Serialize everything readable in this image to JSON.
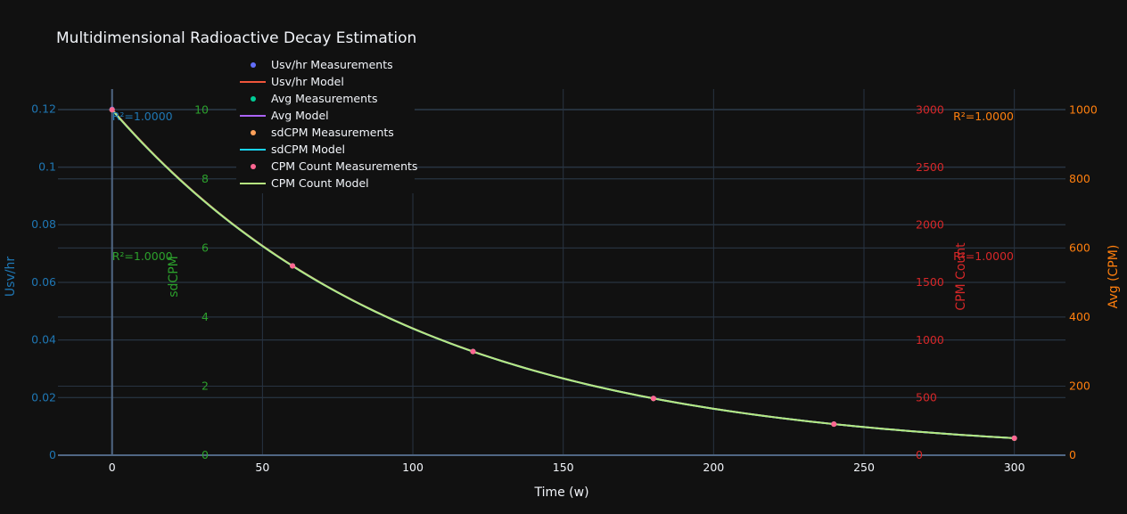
{
  "chart_data": {
    "type": "scatter",
    "title": "Multidimensional Radioactive Decay Estimation",
    "xlabel": "Time (w)",
    "x_ticks": [
      0,
      50,
      100,
      150,
      200,
      250,
      300
    ],
    "xlim": [
      -18,
      317
    ],
    "axes": {
      "y1": {
        "label": "Usv/hr",
        "color": "#1f77b4",
        "range": [
          0,
          0.127
        ],
        "ticks": [
          0,
          0.02,
          0.04,
          0.06,
          0.08,
          0.1,
          0.12
        ],
        "tick_labels": [
          "0",
          "0.02",
          "0.04",
          "0.06",
          "0.08",
          "0.1",
          "0.12"
        ]
      },
      "y2": {
        "label": "sdCPM",
        "color": "#2ca02c",
        "range": [
          0,
          10.6
        ],
        "ticks": [
          0,
          2,
          4,
          6,
          8,
          10
        ],
        "tick_labels": [
          "0",
          "2",
          "4",
          "6",
          "8",
          "10"
        ]
      },
      "y3": {
        "label": "CPM Count",
        "color": "#d62728",
        "range": [
          0,
          3180
        ],
        "ticks": [
          0,
          500,
          1000,
          1500,
          2000,
          2500,
          3000
        ],
        "tick_labels": [
          "0",
          "500",
          "1000",
          "1500",
          "2000",
          "2500",
          "3000"
        ]
      },
      "y4": {
        "label": "Avg (CPM)",
        "color": "#ff7f0e",
        "range": [
          0,
          1060
        ],
        "ticks": [
          0,
          200,
          400,
          600,
          800,
          1000
        ],
        "tick_labels": [
          "0",
          "200",
          "400",
          "600",
          "800",
          "1000"
        ]
      }
    },
    "annotations": [
      {
        "text": "R²=1.0000",
        "color": "#1f77b4"
      },
      {
        "text": "R²=1.0000",
        "color": "#2ca02c"
      },
      {
        "text": "R²=1.0000",
        "color": "#ff7f0e"
      },
      {
        "text": "R²=1.0000",
        "color": "#d62728"
      }
    ],
    "x": [
      0,
      60,
      120,
      180,
      240,
      300
    ],
    "series": [
      {
        "name": "Usv/hr Measurements",
        "kind": "markers",
        "color": "#636efa",
        "axis": "y1",
        "values": [
          0.12,
          0.0657,
          0.036,
          0.0197,
          0.0108,
          0.0059
        ]
      },
      {
        "name": "Usv/hr Model",
        "kind": "line",
        "color": "#EF553B",
        "axis": "y1"
      },
      {
        "name": "Avg Measurements",
        "kind": "markers",
        "color": "#00cc96",
        "axis": "y4",
        "values": [
          1000,
          548,
          300,
          164,
          90,
          49
        ]
      },
      {
        "name": "Avg Model",
        "kind": "line",
        "color": "#ab63fa",
        "axis": "y4"
      },
      {
        "name": "sdCPM Measurements",
        "kind": "markers",
        "color": "#FFA15A",
        "axis": "y2",
        "values": [
          10,
          5.48,
          3.0,
          1.64,
          0.9,
          0.49
        ]
      },
      {
        "name": "sdCPM Model",
        "kind": "line",
        "color": "#19d3f3",
        "axis": "y2"
      },
      {
        "name": "CPM Count Measurements",
        "kind": "markers",
        "color": "#FF6692",
        "axis": "y3",
        "values": [
          3000,
          1644,
          900,
          493,
          270,
          148
        ]
      },
      {
        "name": "CPM Count Model",
        "kind": "line",
        "color": "#B6E880",
        "axis": "y3"
      }
    ],
    "model": {
      "x0": 0,
      "x1": 300,
      "decay_rate_per_w": 0.01003
    }
  }
}
